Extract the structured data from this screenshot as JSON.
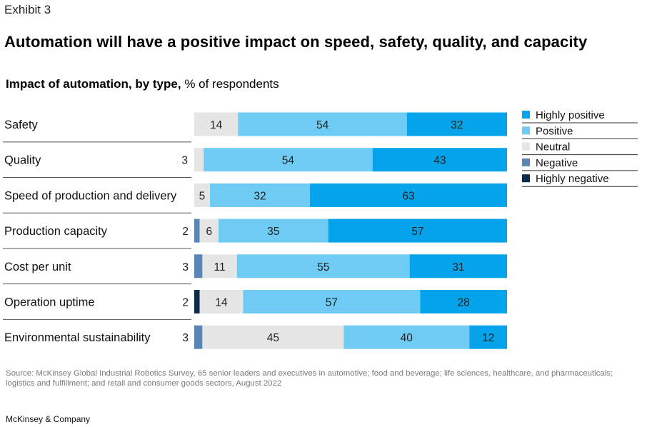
{
  "header": {
    "exhibit": "Exhibit 3",
    "title": "Automation will have a positive impact on speed, safety, quality, and capacity",
    "subtitle_strong": "Impact of automation, by type,",
    "subtitle_rest": " % of respondents"
  },
  "footer": {
    "source": "Source: McKinsey Global Industrial Robotics Survey, 65 senior leaders and executives in automotive; food and beverage; life sciences, healthcare, and pharmaceuticals; logistics and fulfillment; and retail and consumer goods sectors, August 2022",
    "brand": "McKinsey & Company"
  },
  "chart_data": {
    "type": "bar",
    "orientation": "horizontal",
    "stacked": true,
    "categories": [
      "Safety",
      "Quality",
      "Speed of production and delivery",
      "Production capacity",
      "Cost per unit",
      "Operation uptime",
      "Environmental sustainability"
    ],
    "series": [
      {
        "name": "Highly negative",
        "color": "#0d2b4a",
        "values": [
          0,
          0,
          0,
          0,
          0,
          2,
          0
        ]
      },
      {
        "name": "Negative",
        "color": "#5a86b5",
        "values": [
          0,
          0,
          0,
          2,
          3,
          0,
          3
        ]
      },
      {
        "name": "Neutral",
        "color": "#e5e5e5",
        "values": [
          14,
          3,
          5,
          6,
          11,
          14,
          45
        ]
      },
      {
        "name": "Positive",
        "color": "#6fcaf4",
        "values": [
          54,
          54,
          32,
          35,
          55,
          57,
          40
        ]
      },
      {
        "name": "Highly positive",
        "color": "#05a4ea",
        "values": [
          32,
          43,
          63,
          57,
          31,
          28,
          12
        ]
      }
    ],
    "legend_order": [
      "Highly positive",
      "Positive",
      "Neutral",
      "Negative",
      "Highly negative"
    ],
    "legend_position": "right",
    "xlim": [
      0,
      100
    ],
    "grid": false
  }
}
